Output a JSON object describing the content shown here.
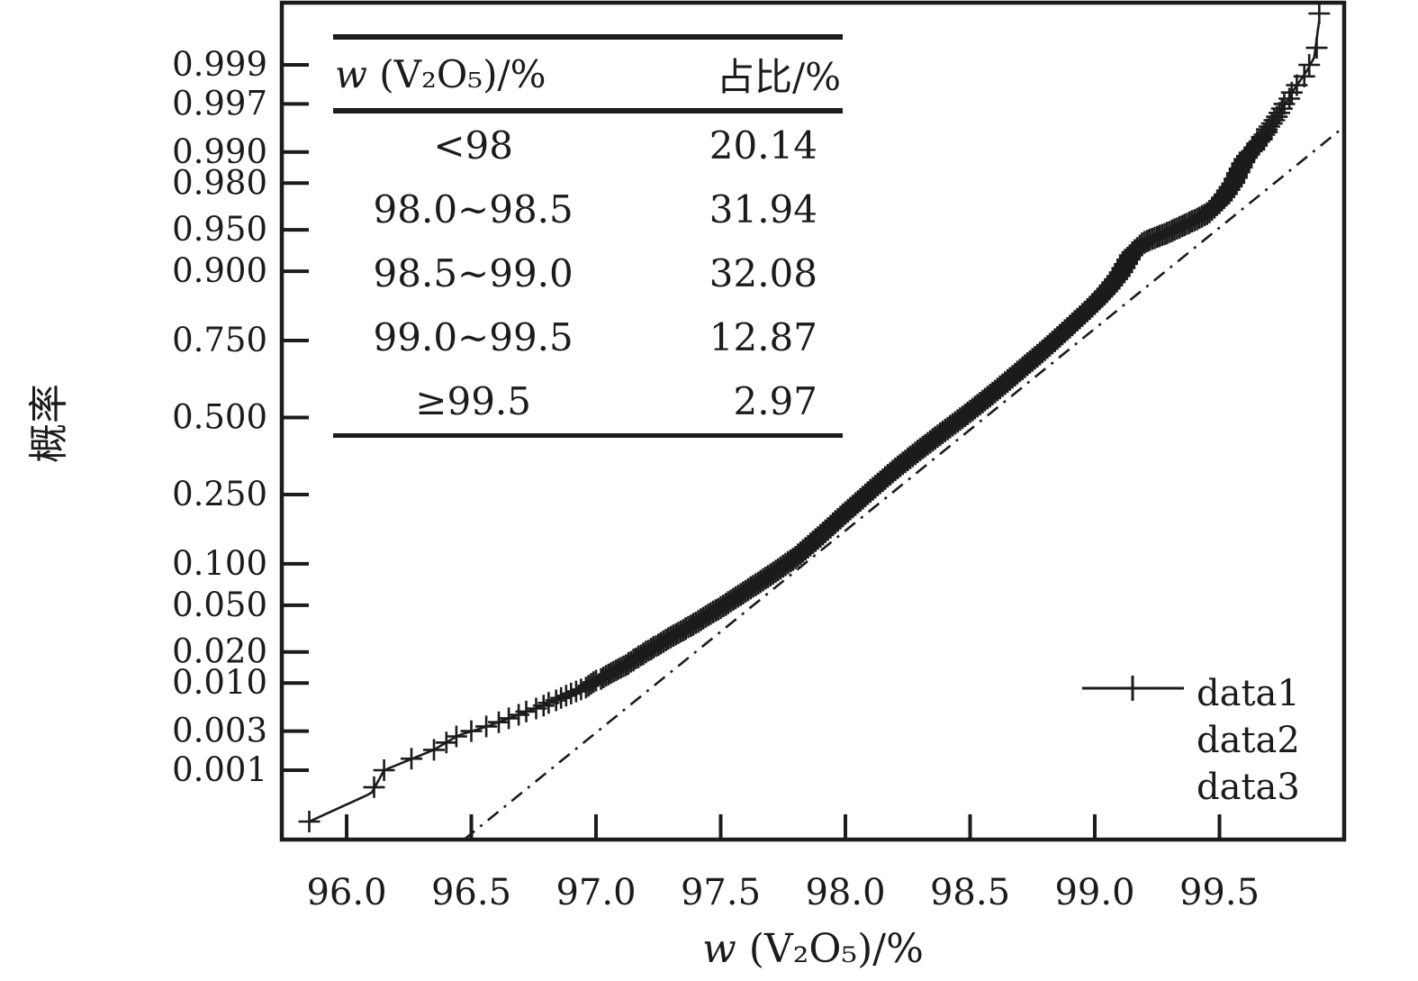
{
  "figure": {
    "background": "#ffffff",
    "ink": "#1b1b1b"
  },
  "chart_data": {
    "type": "scatter",
    "title": "",
    "xlabel": "w (V₂O₅)/%",
    "ylabel": "概率",
    "y_scale": "normal-probability (probit)",
    "x_range": [
      95.74,
      100.0
    ],
    "x_tick_labels": [
      "96.0",
      "96.5",
      "97.0",
      "97.5",
      "98.0",
      "98.5",
      "99.0",
      "99.5"
    ],
    "y_tick_labels": [
      "0.999",
      "0.997",
      "0.990",
      "0.980",
      "0.950",
      "0.900",
      "0.750",
      "0.500",
      "0.250",
      "0.100",
      "0.050",
      "0.020",
      "0.010",
      "0.003",
      "0.001"
    ],
    "grid": false,
    "legend_position": "lower right",
    "series": [
      {
        "name": "data1",
        "kind": "points",
        "marker": "plus",
        "n_points": 2500,
        "x_precision": 0.01,
        "cdf_points": [
          [
            95.85,
            0.0002
          ],
          [
            96.1,
            0.0005
          ],
          [
            96.15,
            0.001
          ],
          [
            96.35,
            0.0018
          ],
          [
            96.45,
            0.0027
          ],
          [
            96.55,
            0.0033
          ],
          [
            96.65,
            0.0042
          ],
          [
            96.75,
            0.0053
          ],
          [
            96.85,
            0.0068
          ],
          [
            96.95,
            0.0088
          ],
          [
            97.0,
            0.0105
          ],
          [
            97.1,
            0.014
          ],
          [
            97.2,
            0.02
          ],
          [
            97.3,
            0.027
          ],
          [
            97.4,
            0.036
          ],
          [
            97.5,
            0.048
          ],
          [
            97.6,
            0.064
          ],
          [
            97.7,
            0.084
          ],
          [
            97.8,
            0.11
          ],
          [
            97.9,
            0.15
          ],
          [
            98.0,
            0.2014
          ],
          [
            98.1,
            0.26
          ],
          [
            98.2,
            0.325
          ],
          [
            98.3,
            0.39
          ],
          [
            98.4,
            0.455
          ],
          [
            98.5,
            0.5208
          ],
          [
            98.6,
            0.59
          ],
          [
            98.7,
            0.66
          ],
          [
            98.8,
            0.725
          ],
          [
            98.9,
            0.787
          ],
          [
            99.0,
            0.8416
          ],
          [
            99.05,
            0.868
          ],
          [
            99.1,
            0.895
          ],
          [
            99.15,
            0.925
          ],
          [
            99.2,
            0.938
          ],
          [
            99.3,
            0.948
          ],
          [
            99.4,
            0.958
          ],
          [
            99.45,
            0.963
          ],
          [
            99.5,
            0.9703
          ],
          [
            99.55,
            0.979
          ],
          [
            99.6,
            0.988
          ],
          [
            99.65,
            0.9915
          ],
          [
            99.7,
            0.9945
          ],
          [
            99.75,
            0.9965
          ],
          [
            99.8,
            0.998
          ],
          [
            99.85,
            0.9988
          ],
          [
            99.88,
            0.9992
          ],
          [
            99.9,
            0.99975
          ]
        ]
      },
      {
        "name": "data2",
        "kind": "line",
        "style": "solid",
        "follows": "empirical CDF of data1"
      },
      {
        "name": "data3",
        "kind": "line",
        "style": "dash-dot",
        "normal_fit": {
          "mu": 98.56,
          "sigma": 0.565
        }
      }
    ]
  },
  "inset_table": {
    "headers": {
      "col1": "w (V₂O₅)/%",
      "col2": "占比/%"
    },
    "rows": [
      {
        "range": "<98",
        "share": "20.14"
      },
      {
        "range": "98.0~98.5",
        "share": "31.94"
      },
      {
        "range": "98.5~99.0",
        "share": "32.08"
      },
      {
        "range": "99.0~99.5",
        "share": "12.87"
      },
      {
        "range": "≥99.5",
        "share": "2.97"
      }
    ]
  },
  "legend": {
    "items": [
      {
        "label": "data1",
        "symbol": "plus-marker"
      },
      {
        "label": "data2",
        "symbol": "solid-line"
      },
      {
        "label": "data3",
        "symbol": "dashdot-line"
      }
    ]
  }
}
